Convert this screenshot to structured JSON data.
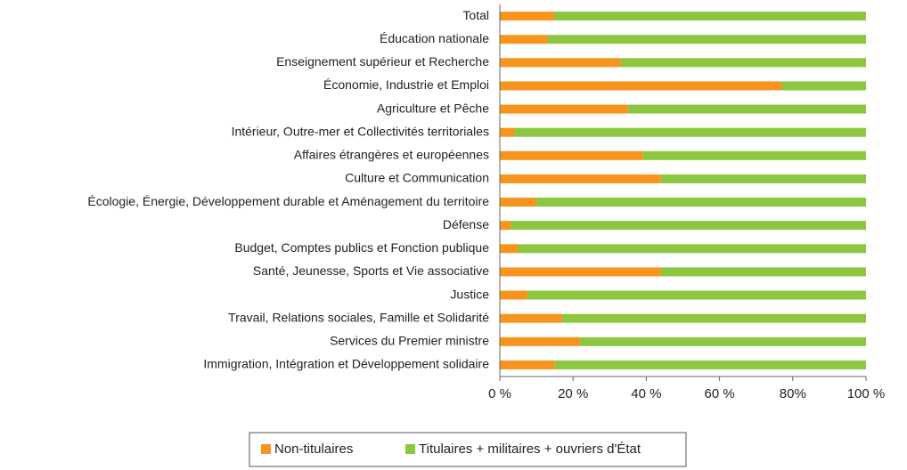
{
  "chart_data": {
    "type": "stacked_barh",
    "categories": [
      "Total",
      "Éducation nationale",
      "Enseignement supérieur et Recherche",
      "Économie, Industrie et Emploi",
      "Agriculture et Pêche",
      "Intérieur, Outre-mer et Collectivités territoriales",
      "Affaires étrangères et européennes",
      "Culture et Communication",
      "Écologie, Énergie, Développement durable et Aménagement du territoire",
      "Défense",
      "Budget, Comptes publics et Fonction publique",
      "Santé, Jeunesse, Sports et Vie associative",
      "Justice",
      "Travail, Relations sociales, Famille et Solidarité",
      "Services du Premier ministre",
      "Immigration, Intégration et Développement solidaire"
    ],
    "series": [
      {
        "name": "Non-titulaires",
        "color": "#f7941d",
        "values": [
          15,
          13,
          33,
          77,
          35,
          4,
          39,
          44,
          10,
          3,
          5,
          44,
          7.5,
          17,
          22,
          15
        ]
      },
      {
        "name": "Titulaires + militaires + ouvriers d'État",
        "color": "#8dc63f",
        "values": [
          85,
          87,
          67,
          23,
          65,
          96,
          61,
          56,
          90,
          97,
          95,
          56,
          92.5,
          83,
          78,
          85
        ]
      }
    ],
    "xlim": [
      0,
      100
    ],
    "xticks": [
      {
        "value": 0,
        "label": "0 %"
      },
      {
        "value": 20,
        "label": "20 %"
      },
      {
        "value": 40,
        "label": "40 %"
      },
      {
        "value": 60,
        "label": "60 %"
      },
      {
        "value": 80,
        "label": "80%"
      },
      {
        "value": 100,
        "label": "100 %"
      }
    ],
    "legend": "bottom"
  }
}
